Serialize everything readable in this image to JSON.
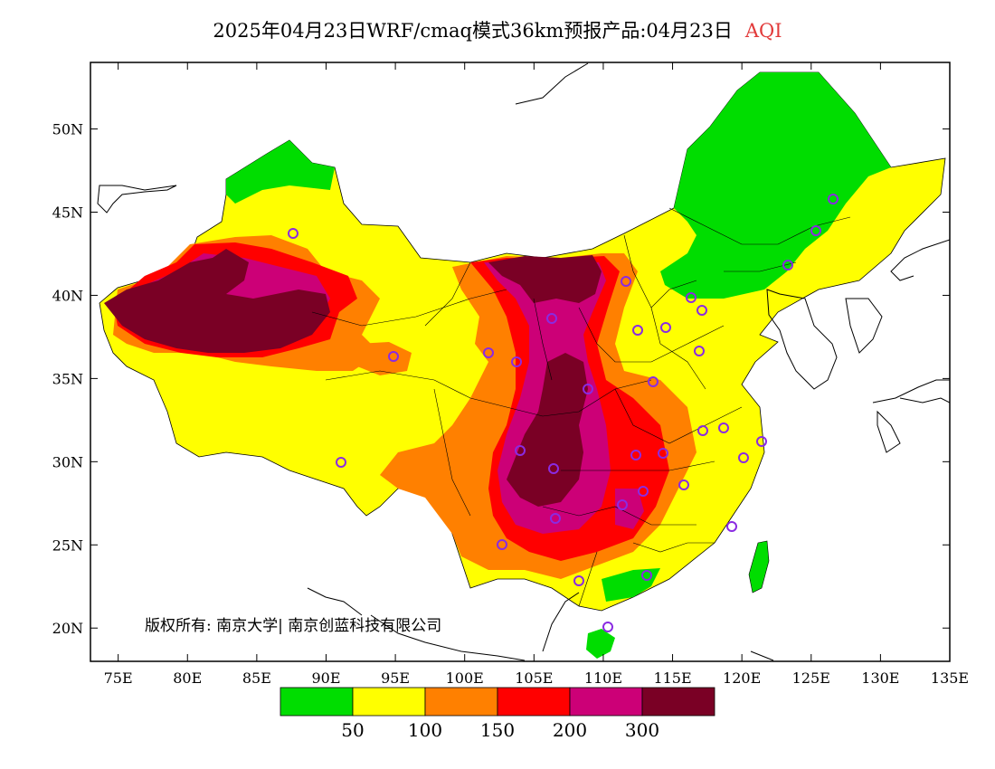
{
  "title": {
    "main": "2025年04月23日WRF/cmaq模式36km预报产品:04月23日",
    "variable": "AQI",
    "variable_color": "#e23a3a"
  },
  "copyright": "版权所有: 南京大学| 南京创蓝科技有限公司",
  "map": {
    "lon_range": [
      73,
      135
    ],
    "lat_range": [
      18,
      54
    ],
    "lon_ticks": [
      "75E",
      "80E",
      "85E",
      "90E",
      "95E",
      "100E",
      "105E",
      "110E",
      "115E",
      "120E",
      "125E",
      "130E",
      "135E"
    ],
    "lat_ticks": [
      "20N",
      "25N",
      "30N",
      "35N",
      "40N",
      "45N",
      "50N"
    ]
  },
  "legend": {
    "colors": [
      "#00dd00",
      "#ffff00",
      "#ff8000",
      "#ff0000",
      "#cc0077",
      "#7a0025"
    ],
    "labels": [
      "50",
      "100",
      "150",
      "200",
      "300"
    ]
  },
  "station_marker_color": "#8a2be2"
}
